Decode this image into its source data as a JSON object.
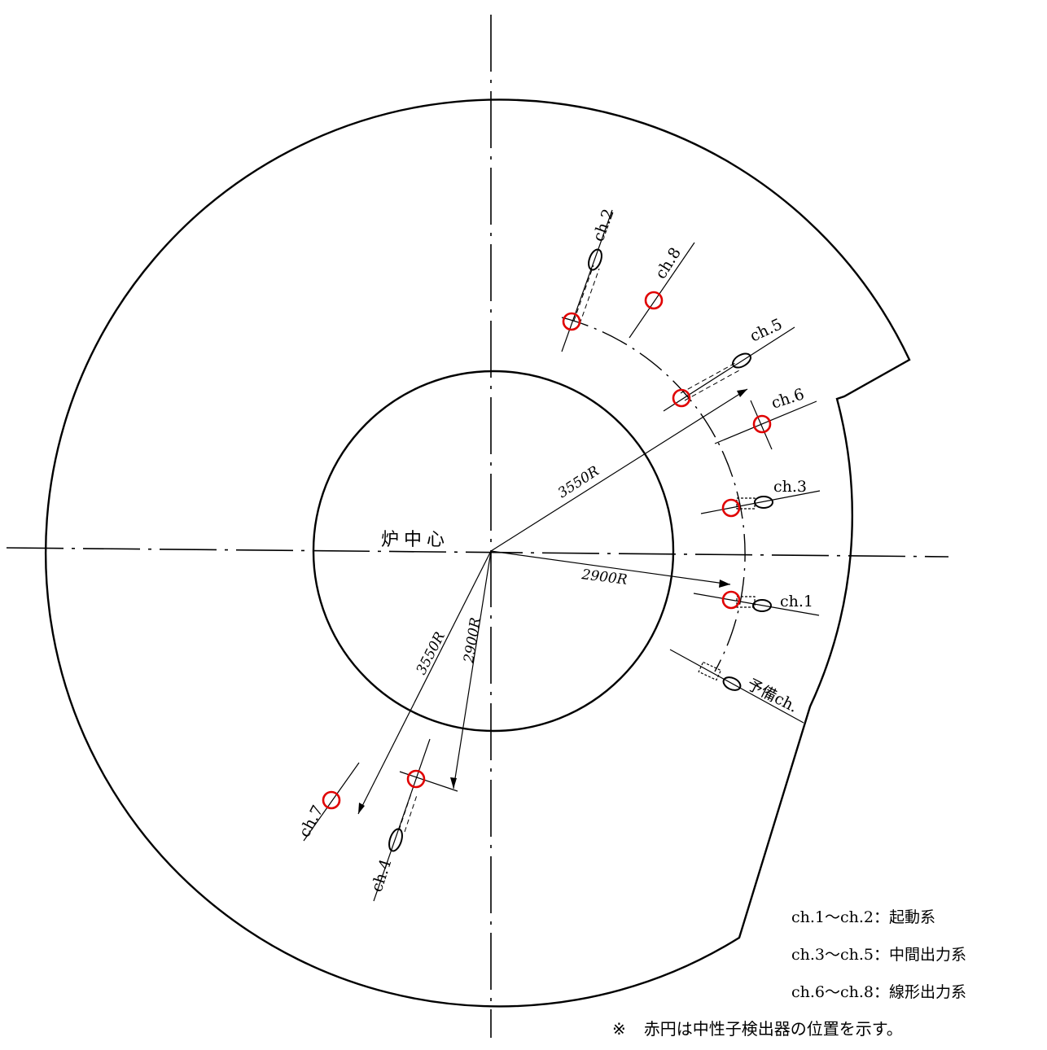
{
  "center_label": "炉中心",
  "dimensions": {
    "r_outer_right": "3550R",
    "r_inner_right": "2900R",
    "r_outer_left": "3550R",
    "r_inner_left": "2900R"
  },
  "detectors": {
    "ch1": "ch.1",
    "ch2": "ch.2",
    "ch3": "ch.3",
    "ch4": "ch.4",
    "ch5": "ch.5",
    "ch6": "ch.6",
    "ch7": "ch.7",
    "ch8": "ch.8",
    "spare": "予備ch."
  },
  "legend": [
    "ch.1～ch.2：起動系",
    "ch.3～ch.5：中間出力系",
    "ch.6～ch.8：線形出力系"
  ],
  "note": {
    "mark": "※",
    "text": "赤円は中性子検出器の位置を示す。"
  },
  "colors": {
    "line": "#000000",
    "detector_marker": "#e00000"
  }
}
